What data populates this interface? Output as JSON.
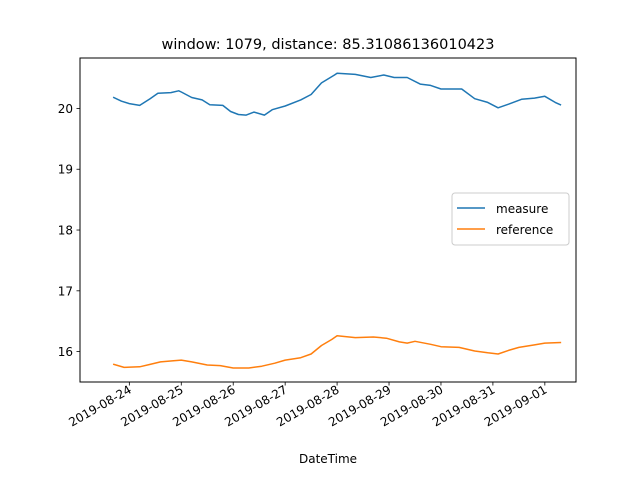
{
  "chart_data": {
    "type": "line",
    "title": "window: 1079, distance: 85.31086136010423",
    "xlabel": "DateTime",
    "ylabel": "",
    "x_range": [
      "2019-08-23 01:12",
      "2019-09-01 14:24"
    ],
    "ylim": [
      15.5,
      20.83
    ],
    "x_ticks": [
      "2019-08-24",
      "2019-08-25",
      "2019-08-26",
      "2019-08-27",
      "2019-08-28",
      "2019-08-29",
      "2019-08-30",
      "2019-08-31",
      "2019-09-01"
    ],
    "y_ticks": [
      16,
      17,
      18,
      19,
      20
    ],
    "grid": false,
    "legend_position": "center right",
    "series": [
      {
        "name": "measure",
        "color": "#1f77b4",
        "points": [
          [
            "2019-08-23 16:48",
            20.18
          ],
          [
            "2019-08-23 20:24",
            20.12
          ],
          [
            "2019-08-24 00:00",
            20.08
          ],
          [
            "2019-08-24 04:48",
            20.05
          ],
          [
            "2019-08-24 09:36",
            20.16
          ],
          [
            "2019-08-24 13:12",
            20.25
          ],
          [
            "2019-08-24 19:12",
            20.26
          ],
          [
            "2019-08-24 22:48",
            20.29
          ],
          [
            "2019-08-25 00:00",
            20.27
          ],
          [
            "2019-08-25 04:48",
            20.18
          ],
          [
            "2019-08-25 09:36",
            20.14
          ],
          [
            "2019-08-25 13:12",
            20.06
          ],
          [
            "2019-08-25 19:12",
            20.05
          ],
          [
            "2019-08-25 22:48",
            19.95
          ],
          [
            "2019-08-26 02:24",
            19.9
          ],
          [
            "2019-08-26 06:00",
            19.89
          ],
          [
            "2019-08-26 09:36",
            19.94
          ],
          [
            "2019-08-26 14:24",
            19.89
          ],
          [
            "2019-08-26 18:00",
            19.98
          ],
          [
            "2019-08-27 00:00",
            20.04
          ],
          [
            "2019-08-27 07:12",
            20.14
          ],
          [
            "2019-08-27 12:00",
            20.23
          ],
          [
            "2019-08-27 16:48",
            20.42
          ],
          [
            "2019-08-27 22:48",
            20.55
          ],
          [
            "2019-08-28 00:00",
            20.58
          ],
          [
            "2019-08-28 08:24",
            20.56
          ],
          [
            "2019-08-28 15:36",
            20.51
          ],
          [
            "2019-08-28 21:36",
            20.55
          ],
          [
            "2019-08-29 02:24",
            20.51
          ],
          [
            "2019-08-29 08:24",
            20.51
          ],
          [
            "2019-08-29 14:24",
            20.4
          ],
          [
            "2019-08-29 19:12",
            20.38
          ],
          [
            "2019-08-30 00:00",
            20.32
          ],
          [
            "2019-08-30 09:36",
            20.32
          ],
          [
            "2019-08-30 15:36",
            20.16
          ],
          [
            "2019-08-30 21:36",
            20.1
          ],
          [
            "2019-08-31 02:24",
            20.01
          ],
          [
            "2019-08-31 07:12",
            20.07
          ],
          [
            "2019-08-31 13:12",
            20.15
          ],
          [
            "2019-08-31 19:12",
            20.17
          ],
          [
            "2019-09-01 00:00",
            20.2
          ],
          [
            "2019-09-01 04:48",
            20.1
          ],
          [
            "2019-09-01 07:12",
            20.06
          ]
        ]
      },
      {
        "name": "reference",
        "color": "#ff7f0e",
        "points": [
          [
            "2019-08-23 16:48",
            15.79
          ],
          [
            "2019-08-23 21:36",
            15.74
          ],
          [
            "2019-08-24 04:48",
            15.75
          ],
          [
            "2019-08-24 09:36",
            15.79
          ],
          [
            "2019-08-24 14:24",
            15.83
          ],
          [
            "2019-08-24 20:24",
            15.85
          ],
          [
            "2019-08-25 00:00",
            15.86
          ],
          [
            "2019-08-25 04:48",
            15.83
          ],
          [
            "2019-08-25 12:00",
            15.78
          ],
          [
            "2019-08-25 18:00",
            15.77
          ],
          [
            "2019-08-26 00:00",
            15.73
          ],
          [
            "2019-08-26 07:12",
            15.73
          ],
          [
            "2019-08-26 13:12",
            15.76
          ],
          [
            "2019-08-26 19:12",
            15.81
          ],
          [
            "2019-08-27 00:00",
            15.86
          ],
          [
            "2019-08-27 07:12",
            15.9
          ],
          [
            "2019-08-27 12:00",
            15.96
          ],
          [
            "2019-08-27 16:48",
            16.1
          ],
          [
            "2019-08-27 21:36",
            16.2
          ],
          [
            "2019-08-28 00:00",
            16.26
          ],
          [
            "2019-08-28 08:24",
            16.23
          ],
          [
            "2019-08-28 16:48",
            16.24
          ],
          [
            "2019-08-28 22:48",
            16.22
          ],
          [
            "2019-08-29 04:48",
            16.16
          ],
          [
            "2019-08-29 08:24",
            16.14
          ],
          [
            "2019-08-29 12:00",
            16.17
          ],
          [
            "2019-08-29 19:12",
            16.12
          ],
          [
            "2019-08-30 00:00",
            16.08
          ],
          [
            "2019-08-30 08:24",
            16.07
          ],
          [
            "2019-08-30 15:36",
            16.01
          ],
          [
            "2019-08-30 21:36",
            15.98
          ],
          [
            "2019-08-31 02:24",
            15.96
          ],
          [
            "2019-08-31 07:12",
            16.02
          ],
          [
            "2019-08-31 12:00",
            16.07
          ],
          [
            "2019-08-31 19:12",
            16.11
          ],
          [
            "2019-09-01 00:00",
            16.14
          ],
          [
            "2019-09-01 07:12",
            16.15
          ]
        ]
      }
    ]
  }
}
